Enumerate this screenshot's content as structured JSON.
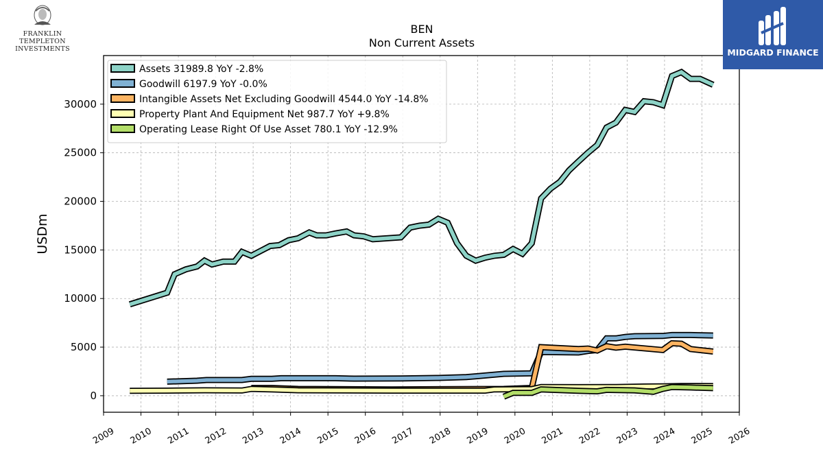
{
  "logos": {
    "left_line1": "FRANKLIN TEMPLETON",
    "left_line2": "INVESTMENTS",
    "right_text": "MIDGARD FINANCE"
  },
  "chart_data": {
    "type": "line",
    "title": "BEN",
    "subtitle": "Non Current  Assets",
    "ylabel": "USDm",
    "xlabel": "",
    "xlim": [
      2009,
      2026
    ],
    "ylim": [
      -1700,
      35000
    ],
    "yticks": [
      0,
      5000,
      10000,
      15000,
      20000,
      25000,
      30000
    ],
    "xticks": [
      2009,
      2010,
      2011,
      2012,
      2013,
      2014,
      2015,
      2016,
      2017,
      2018,
      2019,
      2020,
      2021,
      2022,
      2023,
      2024,
      2025,
      2026
    ],
    "grid": true,
    "legend_position": "top-left",
    "series": [
      {
        "name": "Assets",
        "legend": "Assets  31989.8 YoY -2.8%",
        "color": "#8dd3c7",
        "points": [
          [
            2009.7,
            9400
          ],
          [
            2010.7,
            10600
          ],
          [
            2010.9,
            12500
          ],
          [
            2011.2,
            13000
          ],
          [
            2011.5,
            13300
          ],
          [
            2011.7,
            13900
          ],
          [
            2011.9,
            13500
          ],
          [
            2012.2,
            13800
          ],
          [
            2012.5,
            13800
          ],
          [
            2012.7,
            14800
          ],
          [
            2012.95,
            14400
          ],
          [
            2013.45,
            15400
          ],
          [
            2013.7,
            15500
          ],
          [
            2013.95,
            16000
          ],
          [
            2014.2,
            16200
          ],
          [
            2014.5,
            16800
          ],
          [
            2014.7,
            16500
          ],
          [
            2014.95,
            16500
          ],
          [
            2015.2,
            16700
          ],
          [
            2015.5,
            16900
          ],
          [
            2015.7,
            16500
          ],
          [
            2015.95,
            16400
          ],
          [
            2016.2,
            16100
          ],
          [
            2016.95,
            16300
          ],
          [
            2017.2,
            17300
          ],
          [
            2017.45,
            17500
          ],
          [
            2017.7,
            17600
          ],
          [
            2017.95,
            18200
          ],
          [
            2018.2,
            17800
          ],
          [
            2018.45,
            15700
          ],
          [
            2018.7,
            14400
          ],
          [
            2018.95,
            13900
          ],
          [
            2019.2,
            14200
          ],
          [
            2019.45,
            14400
          ],
          [
            2019.7,
            14500
          ],
          [
            2019.95,
            15100
          ],
          [
            2020.2,
            14600
          ],
          [
            2020.45,
            15700
          ],
          [
            2020.7,
            20300
          ],
          [
            2020.95,
            21300
          ],
          [
            2021.2,
            22000
          ],
          [
            2021.45,
            23200
          ],
          [
            2021.7,
            24100
          ],
          [
            2021.95,
            25000
          ],
          [
            2022.2,
            25800
          ],
          [
            2022.45,
            27600
          ],
          [
            2022.7,
            28100
          ],
          [
            2022.95,
            29400
          ],
          [
            2023.2,
            29200
          ],
          [
            2023.45,
            30300
          ],
          [
            2023.7,
            30200
          ],
          [
            2023.95,
            29900
          ],
          [
            2024.2,
            32900
          ],
          [
            2024.45,
            33300
          ],
          [
            2024.7,
            32600
          ],
          [
            2024.95,
            32600
          ],
          [
            2025.3,
            31990
          ]
        ]
      },
      {
        "name": "Goodwill",
        "legend": "Goodwill  6197.9 YoY -0.0%",
        "color": "#80b1d3",
        "points": [
          [
            2010.7,
            1450
          ],
          [
            2011.5,
            1550
          ],
          [
            2011.75,
            1620
          ],
          [
            2012.7,
            1620
          ],
          [
            2012.95,
            1740
          ],
          [
            2013.5,
            1740
          ],
          [
            2013.75,
            1800
          ],
          [
            2015.2,
            1800
          ],
          [
            2015.7,
            1760
          ],
          [
            2016.95,
            1780
          ],
          [
            2017.95,
            1830
          ],
          [
            2018.7,
            1920
          ],
          [
            2018.95,
            2000
          ],
          [
            2019.7,
            2250
          ],
          [
            2020.45,
            2300
          ],
          [
            2020.7,
            4500
          ],
          [
            2021.7,
            4450
          ],
          [
            2021.95,
            4600
          ],
          [
            2022.2,
            4700
          ],
          [
            2022.45,
            5900
          ],
          [
            2022.7,
            5900
          ],
          [
            2022.95,
            6050
          ],
          [
            2023.2,
            6130
          ],
          [
            2023.95,
            6150
          ],
          [
            2024.2,
            6250
          ],
          [
            2024.7,
            6250
          ],
          [
            2025.3,
            6198
          ]
        ]
      },
      {
        "name": "Intangible Assets Net Excluding Goodwill",
        "legend": "Intangible Assets Net Excluding Goodwill  4544.0 YoY -14.8%",
        "color": "#fdb462",
        "points": [
          [
            2012.95,
            800
          ],
          [
            2013.5,
            800
          ],
          [
            2014.2,
            700
          ],
          [
            2016.7,
            650
          ],
          [
            2019.7,
            700
          ],
          [
            2020.45,
            800
          ],
          [
            2020.7,
            5000
          ],
          [
            2021.7,
            4800
          ],
          [
            2021.95,
            4850
          ],
          [
            2022.2,
            4650
          ],
          [
            2022.45,
            5100
          ],
          [
            2022.7,
            4950
          ],
          [
            2022.95,
            5050
          ],
          [
            2023.95,
            4700
          ],
          [
            2024.2,
            5400
          ],
          [
            2024.45,
            5350
          ],
          [
            2024.7,
            4800
          ],
          [
            2025.3,
            4544
          ]
        ]
      },
      {
        "name": "Property Plant And Equipment Net",
        "legend": "Property Plant And Equipment Net  987.7 YoY +9.8%",
        "color": "#ffffb3",
        "points": [
          [
            2009.7,
            500
          ],
          [
            2010.7,
            520
          ],
          [
            2011.7,
            560
          ],
          [
            2012.7,
            540
          ],
          [
            2012.95,
            700
          ],
          [
            2013.5,
            640
          ],
          [
            2014.2,
            560
          ],
          [
            2016.7,
            520
          ],
          [
            2019.2,
            520
          ],
          [
            2019.45,
            650
          ],
          [
            2020.45,
            680
          ],
          [
            2020.7,
            900
          ],
          [
            2021.7,
            880
          ],
          [
            2022.7,
            900
          ],
          [
            2023.45,
            950
          ],
          [
            2023.95,
            960
          ],
          [
            2024.45,
            1000
          ],
          [
            2025.3,
            988
          ]
        ]
      },
      {
        "name": "Operating Lease Right Of Use Asset",
        "legend": "Operating Lease Right Of Use Asset  780.1 YoY -12.9%",
        "color": "#b3de69",
        "points": [
          [
            2019.7,
            -100
          ],
          [
            2019.95,
            300
          ],
          [
            2020.45,
            300
          ],
          [
            2020.7,
            650
          ],
          [
            2021.7,
            500
          ],
          [
            2022.2,
            450
          ],
          [
            2022.45,
            600
          ],
          [
            2023.2,
            550
          ],
          [
            2023.7,
            400
          ],
          [
            2023.95,
            700
          ],
          [
            2024.2,
            900
          ],
          [
            2024.7,
            850
          ],
          [
            2025.3,
            780
          ]
        ]
      }
    ]
  }
}
